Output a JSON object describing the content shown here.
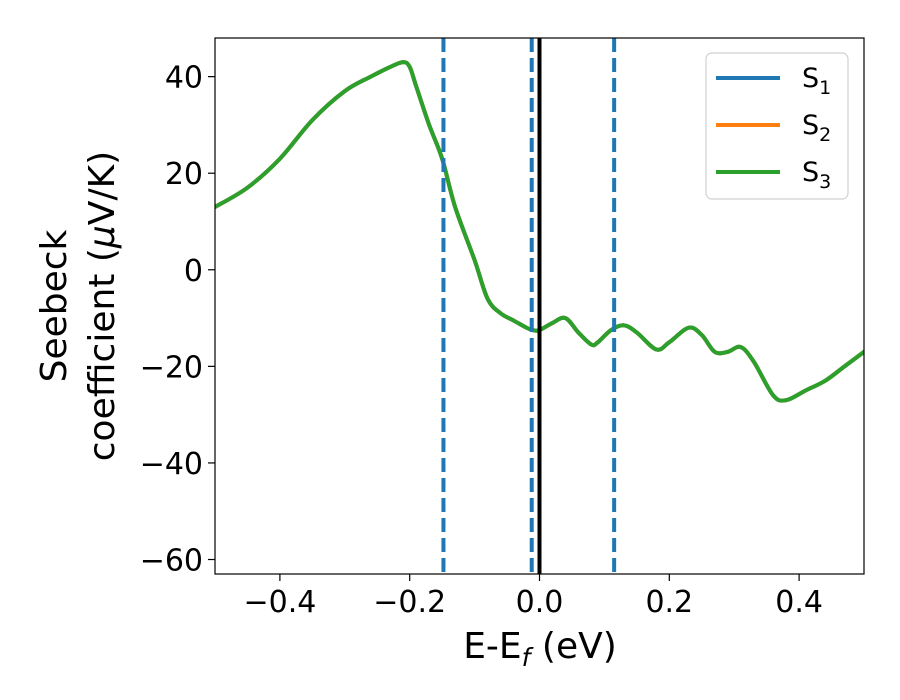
{
  "chart_data": {
    "type": "line",
    "title": "",
    "xlabel": {
      "base": "E-E",
      "sub": "f",
      "suffix": " (eV)"
    },
    "ylabel": {
      "line1": "Seebeck",
      "line2_prefix": "coefficient  (",
      "mu": "μ",
      "line2_suffix": "V/K)"
    },
    "xlim": [
      -0.5,
      0.5
    ],
    "ylim": [
      -63,
      48
    ],
    "xticks": [
      -0.4,
      -0.2,
      0.0,
      0.2,
      0.4
    ],
    "xtick_labels": [
      "−0.4",
      "−0.2",
      "0.0",
      "0.2",
      "0.4"
    ],
    "yticks": [
      -60,
      -40,
      -20,
      0,
      20,
      40
    ],
    "ytick_labels": [
      "−60",
      "−40",
      "−20",
      "0",
      "20",
      "40"
    ],
    "grid": false,
    "legend_position": "top-right",
    "vertical_lines": [
      {
        "x": -0.148,
        "style": "dashed",
        "color": "#1f77b4"
      },
      {
        "x": -0.012,
        "style": "dashed",
        "color": "#1f77b4"
      },
      {
        "x": 0.115,
        "style": "dashed",
        "color": "#1f77b4"
      },
      {
        "x": 0.0,
        "style": "solid",
        "color": "#000000"
      }
    ],
    "series": [
      {
        "name": "S",
        "sub": "1",
        "color": "#1f77b4",
        "x": [
          -0.5,
          -0.45,
          -0.4,
          -0.35,
          -0.3,
          -0.26,
          -0.23,
          -0.21,
          -0.2,
          -0.19,
          -0.17,
          -0.15,
          -0.13,
          -0.1,
          -0.08,
          -0.06,
          -0.04,
          -0.02,
          -0.01,
          0.0,
          0.02,
          0.04,
          0.06,
          0.08,
          0.09,
          0.11,
          0.13,
          0.15,
          0.18,
          0.2,
          0.23,
          0.25,
          0.27,
          0.29,
          0.31,
          0.33,
          0.36,
          0.38,
          0.41,
          0.44,
          0.47,
          0.5
        ],
        "y": [
          13,
          17,
          23,
          31,
          37,
          40,
          42,
          43,
          42,
          38,
          30,
          23,
          13,
          2,
          -6,
          -9,
          -10.5,
          -12,
          -12.5,
          -12.5,
          -11,
          -10,
          -13,
          -15.5,
          -15,
          -12.5,
          -11.5,
          -13,
          -16.5,
          -15,
          -12,
          -13.5,
          -17,
          -17,
          -16,
          -19,
          -26,
          -27,
          -25,
          -23,
          -20,
          -17
        ]
      },
      {
        "name": "S",
        "sub": "2",
        "color": "#ff7f0e",
        "x": [
          -0.5,
          -0.45,
          -0.4,
          -0.35,
          -0.3,
          -0.26,
          -0.23,
          -0.21,
          -0.2,
          -0.19,
          -0.17,
          -0.15,
          -0.13,
          -0.1,
          -0.08,
          -0.06,
          -0.04,
          -0.02,
          -0.01,
          0.0,
          0.02,
          0.04,
          0.06,
          0.08,
          0.09,
          0.11,
          0.13,
          0.15,
          0.18,
          0.2,
          0.23,
          0.25,
          0.27,
          0.29,
          0.31,
          0.33,
          0.36,
          0.38,
          0.41,
          0.44,
          0.47,
          0.5
        ],
        "y": [
          13,
          17,
          23,
          31,
          37,
          40,
          42,
          43,
          42,
          38,
          30,
          23,
          13,
          2,
          -6,
          -9,
          -10.5,
          -12,
          -12.5,
          -12.5,
          -11,
          -10,
          -13,
          -15.5,
          -15,
          -12.5,
          -11.5,
          -13,
          -16.5,
          -15,
          -12,
          -13.5,
          -17,
          -17,
          -16,
          -19,
          -26,
          -27,
          -25,
          -23,
          -20,
          -17
        ]
      },
      {
        "name": "S",
        "sub": "3",
        "color": "#2ca02c",
        "x": [
          -0.5,
          -0.45,
          -0.4,
          -0.35,
          -0.3,
          -0.26,
          -0.23,
          -0.21,
          -0.2,
          -0.19,
          -0.17,
          -0.15,
          -0.13,
          -0.1,
          -0.08,
          -0.06,
          -0.04,
          -0.02,
          -0.01,
          0.0,
          0.02,
          0.04,
          0.06,
          0.08,
          0.09,
          0.11,
          0.13,
          0.15,
          0.18,
          0.2,
          0.23,
          0.25,
          0.27,
          0.29,
          0.31,
          0.33,
          0.36,
          0.38,
          0.41,
          0.44,
          0.47,
          0.5
        ],
        "y": [
          13,
          17,
          23,
          31,
          37,
          40,
          42,
          43,
          42,
          38,
          30,
          23,
          13,
          2,
          -6,
          -9,
          -10.5,
          -12,
          -12.5,
          -12.5,
          -11,
          -10,
          -13,
          -15.5,
          -15,
          -12.5,
          -11.5,
          -13,
          -16.5,
          -15,
          -12,
          -13.5,
          -17,
          -17,
          -16,
          -19,
          -26,
          -27,
          -25,
          -23,
          -20,
          -17
        ]
      }
    ]
  }
}
